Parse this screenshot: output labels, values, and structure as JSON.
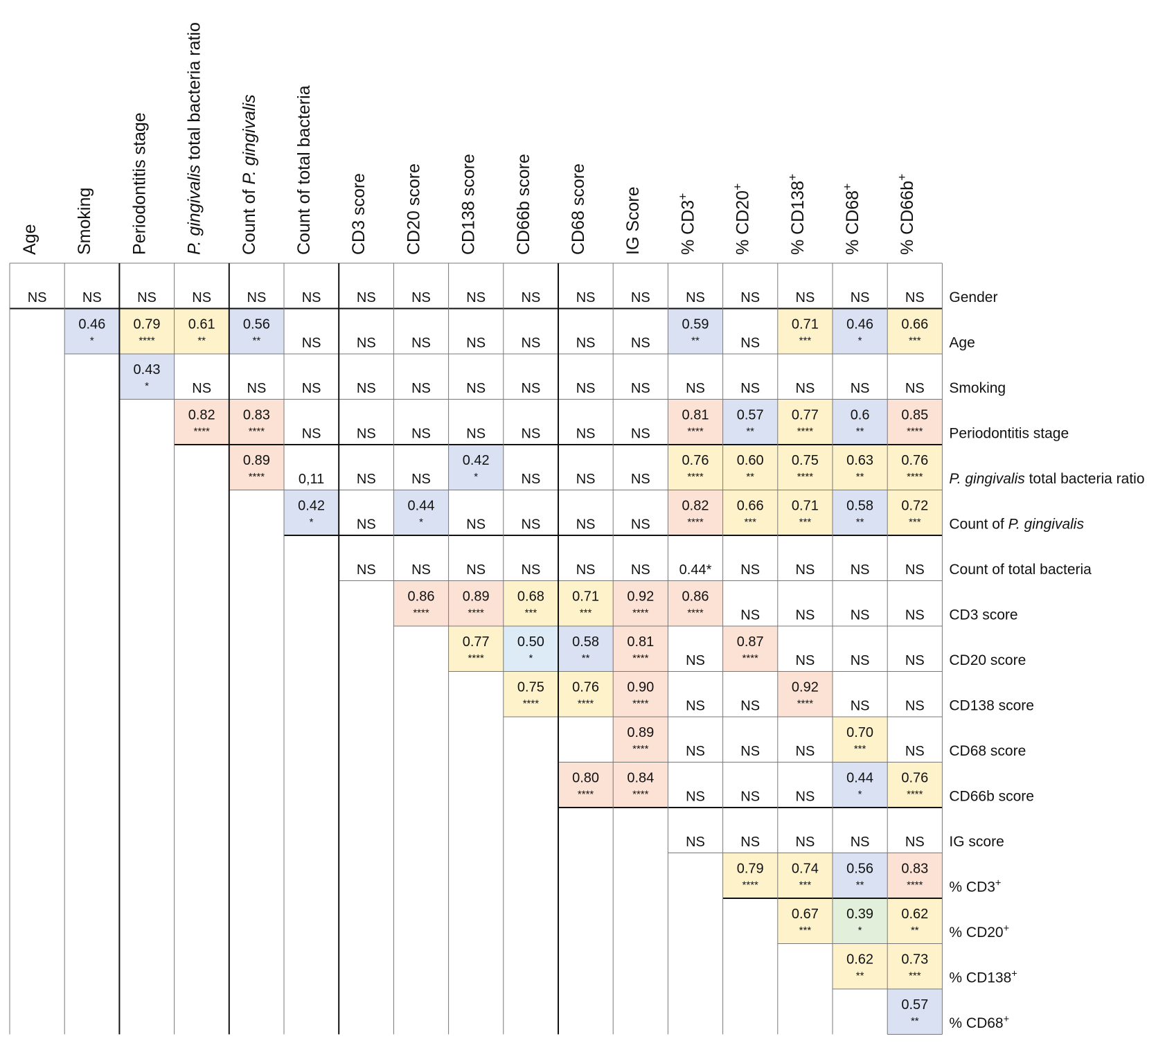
{
  "chart_data": {
    "type": "table",
    "title": "",
    "columns": [
      {
        "id": "c0",
        "label": "Age"
      },
      {
        "id": "c1",
        "label": "Smoking"
      },
      {
        "id": "c2",
        "label": "Periodontitis stage"
      },
      {
        "id": "c3",
        "label_italic": "P. gingivalis",
        "label_rest": " total bacteria ratio"
      },
      {
        "id": "c4",
        "label": "Count of ",
        "label_italic": "P. gingivalis"
      },
      {
        "id": "c5",
        "label": "Count of total bacteria"
      },
      {
        "id": "c6",
        "label": "CD3 score"
      },
      {
        "id": "c7",
        "label": "CD20 score"
      },
      {
        "id": "c8",
        "label": "CD138 score"
      },
      {
        "id": "c9",
        "label": "CD66b score"
      },
      {
        "id": "c10",
        "label": "CD68 score"
      },
      {
        "id": "c11",
        "label": "IG Score"
      },
      {
        "id": "c12",
        "label": "% CD3",
        "sup": "+"
      },
      {
        "id": "c13",
        "label": "% CD20",
        "sup": "+"
      },
      {
        "id": "c14",
        "label": "% CD138",
        "sup": "+"
      },
      {
        "id": "c15",
        "label": "% CD68",
        "sup": "+"
      },
      {
        "id": "c16",
        "label": "% CD66b",
        "sup": "+"
      }
    ],
    "rows": [
      {
        "label": "Gender",
        "cells": [
          {
            "v": "NS"
          },
          {
            "v": "NS"
          },
          {
            "v": "NS"
          },
          {
            "v": "NS"
          },
          {
            "v": "NS"
          },
          {
            "v": "NS"
          },
          {
            "v": "NS"
          },
          {
            "v": "NS"
          },
          {
            "v": "NS"
          },
          {
            "v": "NS"
          },
          {
            "v": "NS"
          },
          {
            "v": "NS"
          },
          {
            "v": "NS"
          },
          {
            "v": "NS"
          },
          {
            "v": "NS"
          },
          {
            "v": "NS"
          },
          {
            "v": "NS"
          }
        ]
      },
      {
        "label": "Age",
        "cells": [
          null,
          {
            "v": "0.46",
            "s": "*",
            "c": "blue"
          },
          {
            "v": "0.79",
            "s": "****",
            "c": "yellow"
          },
          {
            "v": "0.61",
            "s": "**",
            "c": "yellow"
          },
          {
            "v": "0.56",
            "s": "**",
            "c": "blue"
          },
          {
            "v": "NS"
          },
          {
            "v": "NS"
          },
          {
            "v": "NS"
          },
          {
            "v": "NS"
          },
          {
            "v": "NS"
          },
          {
            "v": "NS"
          },
          {
            "v": "NS"
          },
          {
            "v": "0.59",
            "s": "**",
            "c": "blue"
          },
          {
            "v": "NS"
          },
          {
            "v": "0.71",
            "s": "***",
            "c": "yellow"
          },
          {
            "v": "0.46",
            "s": "*",
            "c": "blue"
          },
          {
            "v": "0.66",
            "s": "***",
            "c": "yellow"
          }
        ]
      },
      {
        "label": "Smoking",
        "cells": [
          null,
          null,
          {
            "v": "0.43",
            "s": "*",
            "c": "blue"
          },
          {
            "v": "NS"
          },
          {
            "v": "NS"
          },
          {
            "v": "NS"
          },
          {
            "v": "NS"
          },
          {
            "v": "NS"
          },
          {
            "v": "NS"
          },
          {
            "v": "NS"
          },
          {
            "v": "NS"
          },
          {
            "v": "NS"
          },
          {
            "v": "NS"
          },
          {
            "v": "NS"
          },
          {
            "v": "NS"
          },
          {
            "v": "NS"
          },
          {
            "v": "NS"
          }
        ]
      },
      {
        "label": "Periodontitis stage",
        "cells": [
          null,
          null,
          null,
          {
            "v": "0.82",
            "s": "****",
            "c": "pink"
          },
          {
            "v": "0.83",
            "s": "****",
            "c": "pink"
          },
          {
            "v": "NS"
          },
          {
            "v": "NS"
          },
          {
            "v": "NS"
          },
          {
            "v": "NS"
          },
          {
            "v": "NS"
          },
          {
            "v": "NS"
          },
          {
            "v": "NS"
          },
          {
            "v": "0.81",
            "s": "****",
            "c": "pink"
          },
          {
            "v": "0.57",
            "s": "**",
            "c": "blue"
          },
          {
            "v": "0.77",
            "s": "****",
            "c": "yellow"
          },
          {
            "v": "0.6",
            "s": "**",
            "c": "blue"
          },
          {
            "v": "0.85",
            "s": "****",
            "c": "pink"
          }
        ]
      },
      {
        "label_italic": "P. gingivalis",
        "label_rest": " total bacteria ratio",
        "cells": [
          null,
          null,
          null,
          null,
          {
            "v": "0.89",
            "s": "****",
            "c": "pink"
          },
          {
            "v": "0,11"
          },
          {
            "v": "NS"
          },
          {
            "v": "NS"
          },
          {
            "v": "0.42",
            "s": "*",
            "c": "blue"
          },
          {
            "v": "NS"
          },
          {
            "v": "NS"
          },
          {
            "v": "NS"
          },
          {
            "v": "0.76",
            "s": "****",
            "c": "yellow"
          },
          {
            "v": "0.60",
            "s": "**",
            "c": "yellow"
          },
          {
            "v": "0.75",
            "s": "****",
            "c": "yellow"
          },
          {
            "v": "0.63",
            "s": "**",
            "c": "yellow"
          },
          {
            "v": "0.76",
            "s": "****",
            "c": "yellow"
          }
        ]
      },
      {
        "label": "Count of ",
        "label_italic": "P. gingivalis",
        "cells": [
          null,
          null,
          null,
          null,
          null,
          {
            "v": "0.42",
            "s": "*",
            "c": "blue"
          },
          {
            "v": "NS"
          },
          {
            "v": "0.44",
            "s": "*",
            "c": "blue"
          },
          {
            "v": "NS"
          },
          {
            "v": "NS"
          },
          {
            "v": "NS"
          },
          {
            "v": "NS"
          },
          {
            "v": "0.82",
            "s": "****",
            "c": "pink"
          },
          {
            "v": "0.66",
            "s": "***",
            "c": "yellow"
          },
          {
            "v": "0.71",
            "s": "***",
            "c": "yellow"
          },
          {
            "v": "0.58",
            "s": "**",
            "c": "blue"
          },
          {
            "v": "0.72",
            "s": "***",
            "c": "yellow"
          }
        ]
      },
      {
        "label": "Count of total bacteria",
        "cells": [
          null,
          null,
          null,
          null,
          null,
          null,
          {
            "v": "NS"
          },
          {
            "v": "NS"
          },
          {
            "v": "NS"
          },
          {
            "v": "NS"
          },
          {
            "v": "NS"
          },
          {
            "v": "NS"
          },
          {
            "v": "0.44*"
          },
          {
            "v": "NS"
          },
          {
            "v": "NS"
          },
          {
            "v": "NS"
          },
          {
            "v": "NS"
          }
        ]
      },
      {
        "label": "CD3 score",
        "cells": [
          null,
          null,
          null,
          null,
          null,
          null,
          null,
          {
            "v": "0.86",
            "s": "****",
            "c": "pink"
          },
          {
            "v": "0.89",
            "s": "****",
            "c": "pink"
          },
          {
            "v": "0.68",
            "s": "***",
            "c": "yellow"
          },
          {
            "v": "0.71",
            "s": "***",
            "c": "yellow"
          },
          {
            "v": "0.92",
            "s": "****",
            "c": "pink"
          },
          {
            "v": "0.86",
            "s": "****",
            "c": "pink"
          },
          {
            "v": "NS"
          },
          {
            "v": "NS"
          },
          {
            "v": "NS"
          },
          {
            "v": "NS"
          }
        ]
      },
      {
        "label": "CD20 score",
        "cells": [
          null,
          null,
          null,
          null,
          null,
          null,
          null,
          null,
          {
            "v": "0.77",
            "s": "****",
            "c": "yellow"
          },
          {
            "v": "0.50",
            "s": "*",
            "c": "lightblue"
          },
          {
            "v": "0.58",
            "s": "**",
            "c": "blue"
          },
          {
            "v": "0.81",
            "s": "****",
            "c": "pink"
          },
          {
            "v": "NS"
          },
          {
            "v": "0.87",
            "s": "****",
            "c": "pink"
          },
          {
            "v": "NS"
          },
          {
            "v": "NS"
          },
          {
            "v": "NS"
          }
        ]
      },
      {
        "label": "CD138 score",
        "cells": [
          null,
          null,
          null,
          null,
          null,
          null,
          null,
          null,
          null,
          {
            "v": "0.75",
            "s": "****",
            "c": "yellow"
          },
          {
            "v": "0.76",
            "s": "****",
            "c": "yellow"
          },
          {
            "v": "0.90",
            "s": "****",
            "c": "pink"
          },
          {
            "v": "NS"
          },
          {
            "v": "NS"
          },
          {
            "v": "0.92",
            "s": "****",
            "c": "pink"
          },
          {
            "v": "NS"
          },
          {
            "v": "NS"
          }
        ]
      },
      {
        "label": "CD68 score",
        "cells": [
          null,
          null,
          null,
          null,
          null,
          null,
          null,
          null,
          null,
          null,
          null,
          {
            "v": "0.89",
            "s": "****",
            "c": "pink"
          },
          {
            "v": "NS"
          },
          {
            "v": "NS"
          },
          {
            "v": "NS"
          },
          {
            "v": "0.70",
            "s": "***",
            "c": "yellow"
          },
          {
            "v": "NS"
          }
        ]
      },
      {
        "label": "CD66b score",
        "cells": [
          null,
          null,
          null,
          null,
          null,
          null,
          null,
          null,
          null,
          null,
          {
            "v": "0.80",
            "s": "****",
            "c": "pink"
          },
          {
            "v": "0.84",
            "s": "****",
            "c": "pink"
          },
          {
            "v": "NS"
          },
          {
            "v": "NS"
          },
          {
            "v": "NS"
          },
          {
            "v": "0.44",
            "s": "*",
            "c": "blue"
          },
          {
            "v": "0.76",
            "s": "****",
            "c": "yellow"
          }
        ]
      },
      {
        "label": "IG score",
        "cells": [
          null,
          null,
          null,
          null,
          null,
          null,
          null,
          null,
          null,
          null,
          null,
          null,
          {
            "v": "NS"
          },
          {
            "v": "NS"
          },
          {
            "v": "NS"
          },
          {
            "v": "NS"
          },
          {
            "v": "NS"
          }
        ]
      },
      {
        "label": "% CD3",
        "sup": "+",
        "cells": [
          null,
          null,
          null,
          null,
          null,
          null,
          null,
          null,
          null,
          null,
          null,
          null,
          null,
          {
            "v": "0.79",
            "s": "****",
            "c": "yellow"
          },
          {
            "v": "0.74",
            "s": "***",
            "c": "yellow"
          },
          {
            "v": "0.56",
            "s": "**",
            "c": "blue"
          },
          {
            "v": "0.83",
            "s": "****",
            "c": "pink"
          }
        ]
      },
      {
        "label": "% CD20",
        "sup": "+",
        "cells": [
          null,
          null,
          null,
          null,
          null,
          null,
          null,
          null,
          null,
          null,
          null,
          null,
          null,
          null,
          {
            "v": "0.67",
            "s": "***",
            "c": "yellow"
          },
          {
            "v": "0.39",
            "s": "*",
            "c": "green"
          },
          {
            "v": "0.62",
            "s": "**",
            "c": "yellow"
          }
        ]
      },
      {
        "label": "% CD138",
        "sup": "+",
        "cells": [
          null,
          null,
          null,
          null,
          null,
          null,
          null,
          null,
          null,
          null,
          null,
          null,
          null,
          null,
          null,
          {
            "v": "0.62",
            "s": "**",
            "c": "yellow"
          },
          {
            "v": "0.73",
            "s": "***",
            "c": "yellow"
          }
        ]
      },
      {
        "label": "% CD68",
        "sup": "+",
        "cells": [
          null,
          null,
          null,
          null,
          null,
          null,
          null,
          null,
          null,
          null,
          null,
          null,
          null,
          null,
          null,
          null,
          {
            "v": "0.57",
            "s": "**",
            "c": "blue"
          }
        ]
      }
    ],
    "colors": {
      "pink": "#fbe2d5",
      "yellow": "#fef2cb",
      "blue": "#d9e1f2",
      "lightblue": "#ddebf7",
      "green": "#e2efda",
      "line": "#777777",
      "thick_line": "#111111"
    }
  }
}
